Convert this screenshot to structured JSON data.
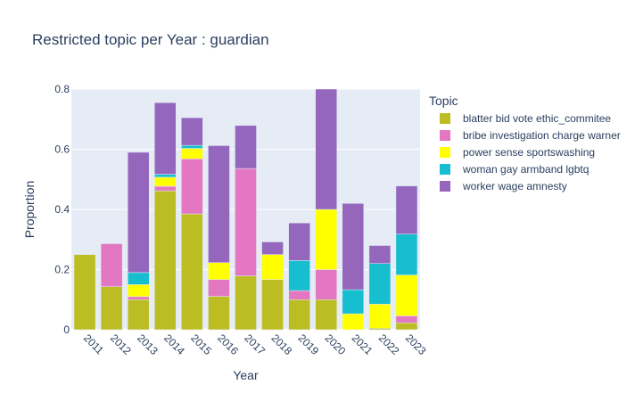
{
  "chart_data": {
    "type": "bar",
    "stacked": true,
    "title": "Restricted topic per Year : guardian",
    "xlabel": "Year",
    "ylabel": "Proportion",
    "ylim": [
      0,
      0.8
    ],
    "yticks": [
      0,
      0.2,
      0.4,
      0.6,
      0.8
    ],
    "ytick_labels": [
      "0",
      "0.2",
      "0.4",
      "0.6",
      "0.8"
    ],
    "grid": true,
    "legend_title": "Topic",
    "legend_position": "right",
    "categories": [
      "2011",
      "2012",
      "2013",
      "2014",
      "2015",
      "2016",
      "2017",
      "2018",
      "2019",
      "2020",
      "2021",
      "2022",
      "2023"
    ],
    "series": [
      {
        "name": "blatter bid vote ethic_commitee",
        "color": "#bcbd22",
        "values": [
          0.25,
          0.143,
          0.1,
          0.462,
          0.385,
          0.111,
          0.179,
          0.167,
          0.1,
          0.1,
          0.0,
          0.005,
          0.023
        ]
      },
      {
        "name": "bribe investigation charge warner",
        "color": "#e377c2",
        "values": [
          0.0,
          0.143,
          0.01,
          0.015,
          0.183,
          0.056,
          0.357,
          0.0,
          0.03,
          0.1,
          0.0,
          0.0,
          0.023
        ]
      },
      {
        "name": "power sense sportswashing",
        "color": "#ffff00",
        "values": [
          0.0,
          0.0,
          0.04,
          0.03,
          0.035,
          0.056,
          0.0,
          0.083,
          0.0,
          0.2,
          0.053,
          0.08,
          0.136
        ]
      },
      {
        "name": "woman gay armband lgbtq",
        "color": "#17becf",
        "values": [
          0.0,
          0.0,
          0.04,
          0.01,
          0.01,
          0.0,
          0.0,
          0.0,
          0.1,
          0.0,
          0.08,
          0.135,
          0.136
        ]
      },
      {
        "name": "worker wage amnesty",
        "color": "#9467bd",
        "values": [
          0.0,
          0.0,
          0.4,
          0.238,
          0.092,
          0.389,
          0.143,
          0.042,
          0.125,
          0.4,
          0.287,
          0.06,
          0.16
        ]
      }
    ]
  }
}
